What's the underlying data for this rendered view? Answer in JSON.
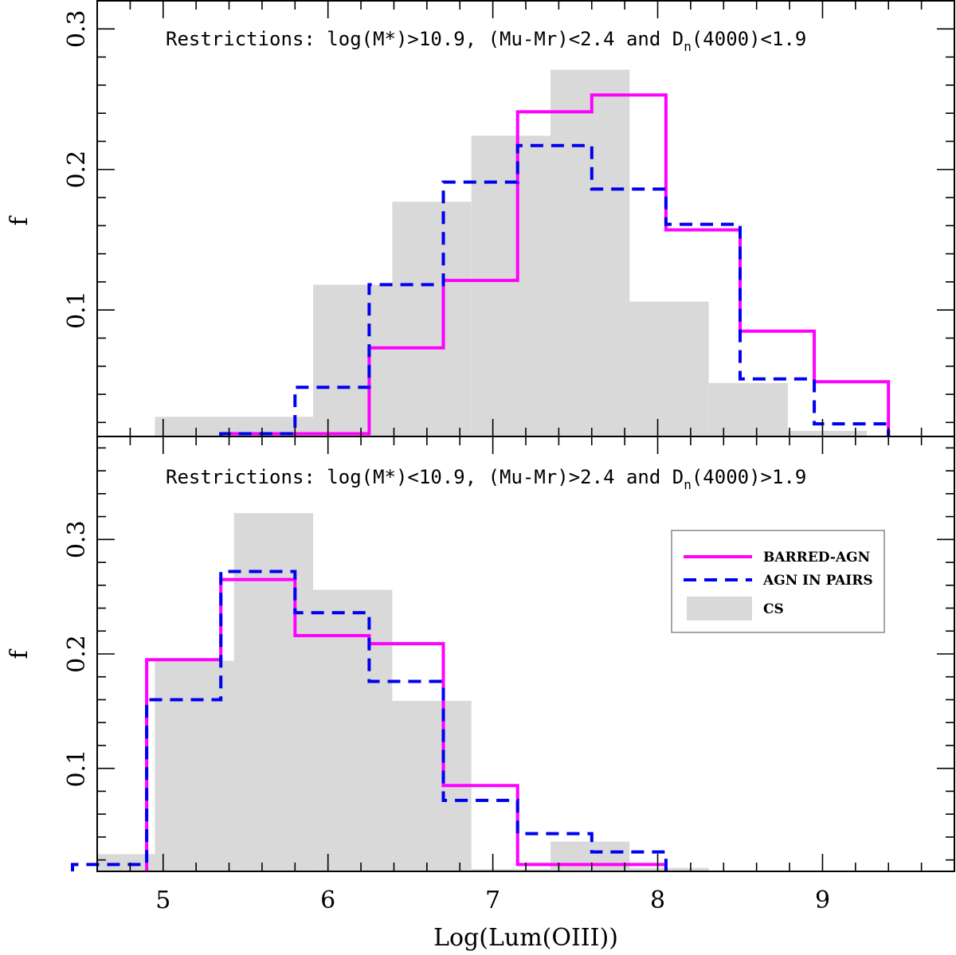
{
  "chart_data": [
    {
      "type": "histogram",
      "panel": "top",
      "annotation": {
        "prefix": "Restrictions: log(M*)>10.9, (Mu-Mr)<2.4 and D",
        "subscript": "n",
        "suffix": "(4000)<1.9"
      },
      "ylabel": "f",
      "xlim": [
        4.6,
        9.8
      ],
      "ylim": [
        0.01,
        0.32
      ],
      "yticks": [
        0.1,
        0.2,
        0.3
      ],
      "ytick_labels": [
        "0.1",
        "0.2",
        "0.3"
      ],
      "grid": false,
      "series": [
        {
          "name": "CS",
          "style": "filled",
          "color": "#d9d9d9",
          "edges": [
            4.95,
            5.43,
            5.91,
            6.39,
            6.87,
            7.35,
            7.83,
            8.31,
            8.79,
            9.27
          ],
          "values": [
            0.024,
            0.024,
            0.118,
            0.177,
            0.224,
            0.271,
            0.106,
            0.048,
            0.014
          ]
        },
        {
          "name": "BARRED-AGN",
          "style": "solid",
          "color": "#ff00ff",
          "edges": [
            5.35,
            5.8,
            6.25,
            6.7,
            7.15,
            7.6,
            8.05,
            8.5,
            8.95,
            9.4
          ],
          "values": [
            0.012,
            0.012,
            0.073,
            0.121,
            0.241,
            0.253,
            0.157,
            0.085,
            0.049
          ]
        },
        {
          "name": "AGN IN PAIRS",
          "style": "dashed",
          "color": "#0000ee",
          "edges": [
            5.35,
            5.8,
            6.25,
            6.7,
            7.15,
            7.6,
            8.05,
            8.5,
            8.95,
            9.4
          ],
          "values": [
            0.012,
            0.045,
            0.118,
            0.191,
            0.217,
            0.186,
            0.161,
            0.051,
            0.019
          ]
        }
      ]
    },
    {
      "type": "histogram",
      "panel": "bottom",
      "annotation": {
        "prefix": "Restrictions: log(M*)<10.9, (Mu-Mr)>2.4 and D",
        "subscript": "n",
        "suffix": "(4000)>1.9"
      },
      "xlabel": "Log(Lum(OIII))",
      "ylabel": "f",
      "xlim": [
        4.6,
        9.8
      ],
      "ylim": [
        0.01,
        0.39
      ],
      "xticks": [
        5,
        6,
        7,
        8,
        9
      ],
      "xtick_labels": [
        "5",
        "6",
        "7",
        "8",
        "9"
      ],
      "yticks": [
        0.1,
        0.2,
        0.3
      ],
      "ytick_labels": [
        "0.1",
        "0.2",
        "0.3"
      ],
      "grid": false,
      "legend": {
        "placement": "right",
        "entries": [
          {
            "label": "BARRED-AGN",
            "style": "solid",
            "color": "#ff00ff"
          },
          {
            "label": "AGN IN PAIRS",
            "style": "dashed",
            "color": "#0000ee"
          },
          {
            "label": "CS",
            "style": "filled",
            "color": "#d9d9d9"
          }
        ]
      },
      "series": [
        {
          "name": "CS",
          "style": "filled",
          "color": "#d9d9d9",
          "edges": [
            4.47,
            4.95,
            5.43,
            5.91,
            6.39,
            6.87,
            7.35,
            7.83,
            8.31
          ],
          "values": [
            0.025,
            0.194,
            0.323,
            0.256,
            0.159,
            0.012,
            0.036,
            0.013
          ]
        },
        {
          "name": "BARRED-AGN",
          "style": "solid",
          "color": "#ff00ff",
          "edges": [
            4.9,
            5.35,
            5.8,
            6.25,
            6.7,
            7.15,
            7.6,
            8.05
          ],
          "values": [
            0.195,
            0.265,
            0.216,
            0.209,
            0.085,
            0.016,
            0.016
          ]
        },
        {
          "name": "AGN IN PAIRS",
          "style": "dashed",
          "color": "#0000ee",
          "edges": [
            4.45,
            4.9,
            5.35,
            5.8,
            6.25,
            6.7,
            7.15,
            7.6,
            8.05
          ],
          "values": [
            0.016,
            0.16,
            0.272,
            0.236,
            0.176,
            0.072,
            0.043,
            0.027
          ]
        }
      ]
    }
  ]
}
